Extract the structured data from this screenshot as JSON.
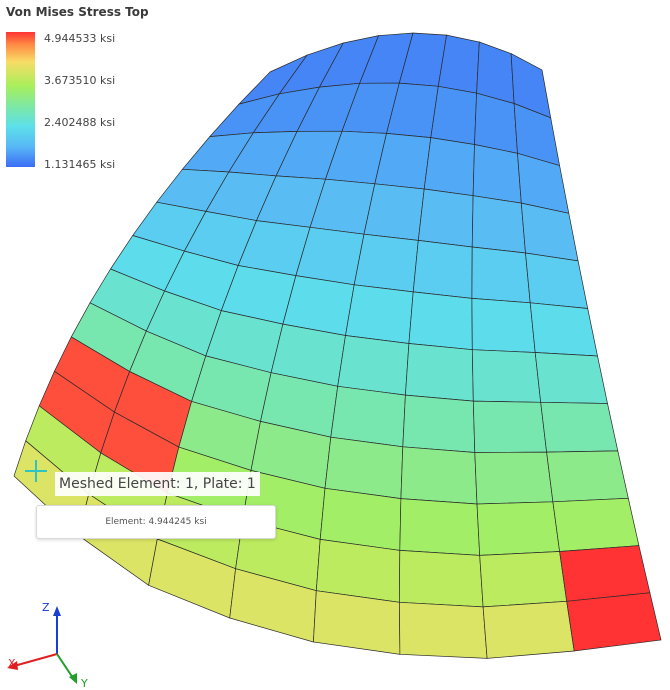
{
  "legend": {
    "title": "Von Mises Stress Top",
    "labels": [
      "4.944533 ksi",
      "3.673510 ksi",
      "2.402488 ksi",
      "1.131465 ksi"
    ]
  },
  "tooltip": {
    "title": "Meshed Element: 1, Plate: 1",
    "detail": "Element: 4.944245 ksi"
  },
  "axes": {
    "z": "Z",
    "x": "X",
    "y": "Y"
  },
  "colors": {
    "axis_z": "#1a3fd6",
    "axis_x": "#e02020",
    "axis_y": "#1f9e2a",
    "crosshair": "#2ec4c4",
    "mesh_line": "#2a2a2a"
  }
}
